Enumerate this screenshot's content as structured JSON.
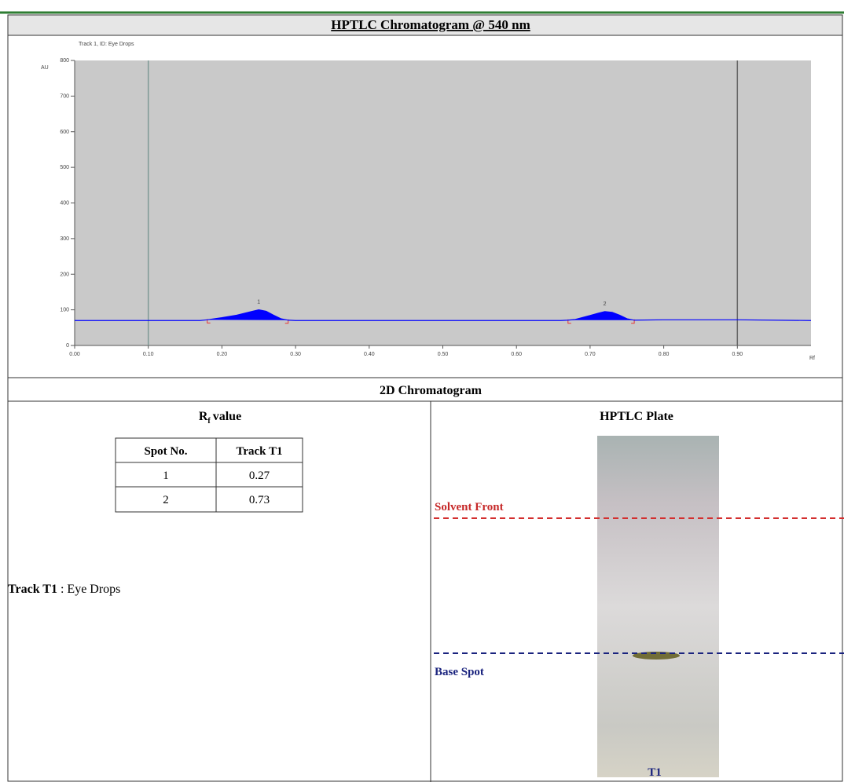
{
  "header": {
    "title": "HPTLC Chromatogram @ 540 nm"
  },
  "chart_data": {
    "type": "area",
    "subtitle": "Track 1, ID: Eye Drops",
    "y_label": "AU",
    "x_label": "Rf",
    "x": [
      0.0,
      0.1,
      0.17,
      0.18,
      0.2,
      0.22,
      0.24,
      0.25,
      0.26,
      0.27,
      0.28,
      0.29,
      0.3,
      0.4,
      0.5,
      0.6,
      0.66,
      0.67,
      0.68,
      0.7,
      0.71,
      0.72,
      0.73,
      0.74,
      0.75,
      0.76,
      0.8,
      0.9,
      1.0
    ],
    "series": [
      {
        "color": "#0000ff",
        "values": [
          70,
          70,
          70,
          72,
          78,
          85,
          95,
          100,
          96,
          85,
          75,
          71,
          70,
          70,
          70,
          70,
          70,
          71,
          73,
          84,
          90,
          95,
          93,
          85,
          75,
          71,
          72,
          72,
          70
        ]
      }
    ],
    "xlim": [
      0,
      1
    ],
    "ylim": [
      0,
      800
    ],
    "xticks": [
      {
        "value": 0,
        "label": "0.00"
      },
      {
        "value": 0.1,
        "label": "0.10"
      },
      {
        "value": 0.2,
        "label": "0.20"
      },
      {
        "value": 0.3,
        "label": "0.30"
      },
      {
        "value": 0.4,
        "label": "0.40"
      },
      {
        "value": 0.5,
        "label": "0.50"
      },
      {
        "value": 0.6,
        "label": "0.60"
      },
      {
        "value": 0.7,
        "label": "0.70"
      },
      {
        "value": 0.8,
        "label": "0.80"
      },
      {
        "value": 0.9,
        "label": "0.90"
      }
    ],
    "yticks": [
      0,
      100,
      200,
      300,
      400,
      500,
      600,
      700,
      800
    ],
    "vlines": [
      0.1,
      0.9
    ],
    "peaks": [
      {
        "label": "1",
        "start": 0.18,
        "end": 0.29
      },
      {
        "label": "2",
        "start": 0.67,
        "end": 0.76
      }
    ]
  },
  "section": {
    "title": "2D Chromatogram",
    "rf": {
      "symbol": "R",
      "subscript": "f",
      "text": "value"
    },
    "table": {
      "header": [
        "Spot No.",
        "Track T1"
      ],
      "rows": [
        [
          1,
          0.27
        ],
        [
          2,
          0.73
        ]
      ]
    },
    "sample": {
      "track": "Track T1",
      "text": ": Eye Drops"
    },
    "plate": {
      "title": "HPTLC Plate",
      "solvent_front": "Solvent Front",
      "base_spot": "Base Spot",
      "track": "T1"
    }
  }
}
